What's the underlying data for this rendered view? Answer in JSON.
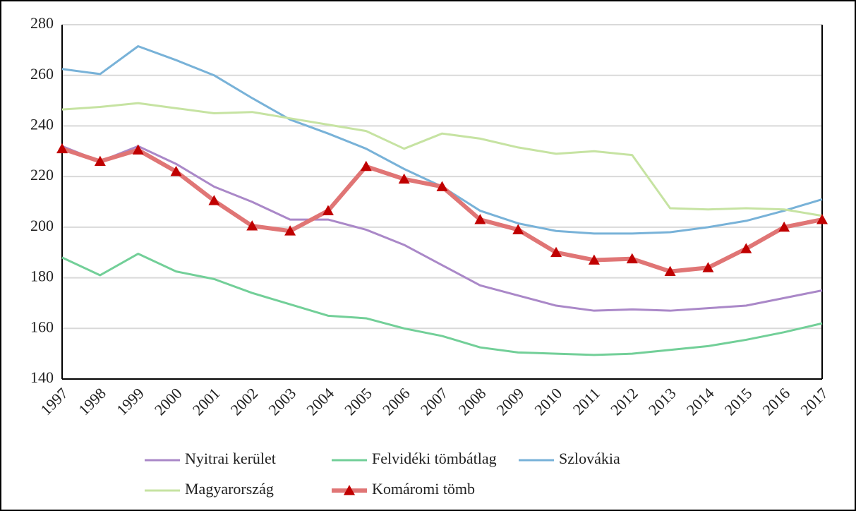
{
  "chart_data": {
    "type": "line",
    "categories": [
      "1997",
      "1998",
      "1999",
      "2000",
      "2001",
      "2002",
      "2003",
      "2004",
      "2005",
      "2006",
      "2007",
      "2008",
      "2009",
      "2010",
      "2011",
      "2012",
      "2013",
      "2014",
      "2015",
      "2016",
      "2017"
    ],
    "series": [
      {
        "name": "Nyitrai kerület",
        "color": "#aa88c8",
        "values": [
          232,
          226,
          232,
          225,
          216,
          210,
          203,
          203,
          199,
          193,
          185,
          177,
          173,
          169,
          167,
          167.5,
          167,
          168,
          169,
          172,
          175
        ]
      },
      {
        "name": "Felvidéki tömbátlag",
        "color": "#72cf98",
        "values": [
          188,
          181,
          189.5,
          182.5,
          179.5,
          174,
          169.5,
          165,
          164,
          160,
          157,
          152.5,
          150.5,
          150,
          149.5,
          150,
          151.5,
          153,
          155.5,
          158.5,
          162
        ]
      },
      {
        "name": "Szlovákia",
        "color": "#78b2d8",
        "values": [
          262.5,
          260.5,
          271.5,
          266,
          260,
          251,
          242.5,
          237,
          231,
          223,
          216,
          206.5,
          201.5,
          198.5,
          197.5,
          197.5,
          198,
          200,
          202.5,
          206.5,
          211
        ]
      },
      {
        "name": "Magyarország",
        "color": "#c6e3a2",
        "values": [
          246.5,
          247.5,
          249,
          247,
          245,
          245.5,
          243,
          240.5,
          238,
          231,
          237,
          235,
          231.5,
          229,
          230,
          228.5,
          207.5,
          207,
          207.5,
          207,
          204.5
        ]
      },
      {
        "name": "Komáromi tömb",
        "color": "#e07575",
        "marker": "triangle",
        "marker_color": "#c00000",
        "values": [
          231,
          226,
          230.5,
          222,
          210.5,
          200.5,
          198.5,
          206.5,
          224,
          219,
          216,
          203,
          199,
          190,
          187,
          187.5,
          182.5,
          184,
          191.5,
          200,
          203
        ]
      }
    ],
    "ylim": [
      140,
      280
    ],
    "yticks": [
      140,
      160,
      180,
      200,
      220,
      240,
      260,
      280
    ],
    "grid": true,
    "legend": "bottom"
  }
}
